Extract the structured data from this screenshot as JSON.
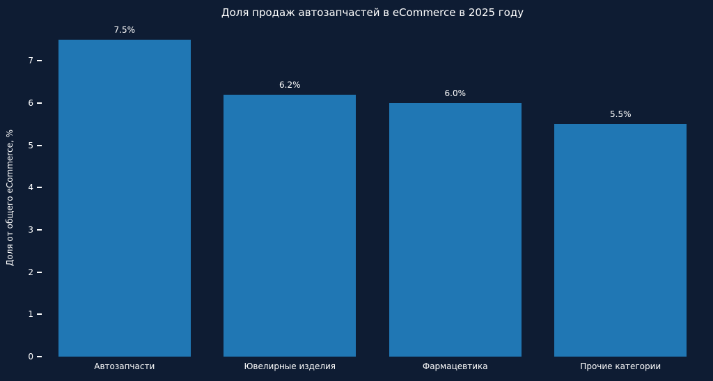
{
  "chart_data": {
    "type": "bar",
    "title": "Доля продаж автозапчастей в eCommerce в 2025 году",
    "ylabel": "Доля от общего eCommerce, %",
    "xlabel": "",
    "categories": [
      "Автозапчасти",
      "Ювелирные изделия",
      "Фармацевтика",
      "Прочие категории"
    ],
    "values": [
      7.5,
      6.2,
      6.0,
      5.5
    ],
    "value_labels": [
      "7.5%",
      "6.2%",
      "6.0%",
      "5.5%"
    ],
    "ylim": [
      0,
      7.5
    ],
    "yticks": [
      0,
      1,
      2,
      3,
      4,
      5,
      6,
      7
    ],
    "grid": false,
    "legend": null,
    "bar_color": "#2077b4",
    "background_color": "#0e1c33",
    "text_color": "#ffffff"
  }
}
